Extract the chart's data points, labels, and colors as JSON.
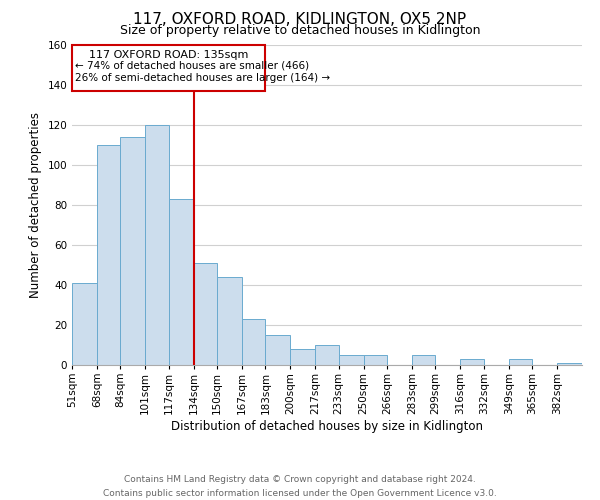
{
  "title": "117, OXFORD ROAD, KIDLINGTON, OX5 2NP",
  "subtitle": "Size of property relative to detached houses in Kidlington",
  "xlabel": "Distribution of detached houses by size in Kidlington",
  "ylabel": "Number of detached properties",
  "footer_line1": "Contains HM Land Registry data © Crown copyright and database right 2024.",
  "footer_line2": "Contains public sector information licensed under the Open Government Licence v3.0.",
  "bin_labels": [
    "51sqm",
    "68sqm",
    "84sqm",
    "101sqm",
    "117sqm",
    "134sqm",
    "150sqm",
    "167sqm",
    "183sqm",
    "200sqm",
    "217sqm",
    "233sqm",
    "250sqm",
    "266sqm",
    "283sqm",
    "299sqm",
    "316sqm",
    "332sqm",
    "349sqm",
    "365sqm",
    "382sqm"
  ],
  "bar_heights": [
    41,
    110,
    114,
    120,
    83,
    51,
    44,
    23,
    15,
    8,
    10,
    5,
    5,
    0,
    5,
    0,
    3,
    0,
    3,
    0,
    1
  ],
  "bar_color": "#ccdded",
  "bar_edge_color": "#6aaacf",
  "bin_edges": [
    51,
    68,
    84,
    101,
    117,
    134,
    150,
    167,
    183,
    200,
    217,
    233,
    250,
    266,
    283,
    299,
    316,
    332,
    349,
    365,
    382,
    399
  ],
  "vline_x": 134,
  "vline_color": "#cc0000",
  "annotation_title": "117 OXFORD ROAD: 135sqm",
  "annotation_line2": "← 74% of detached houses are smaller (466)",
  "annotation_line3": "26% of semi-detached houses are larger (164) →",
  "annotation_box_color": "#cc0000",
  "annotation_box_fill": "#ffffff",
  "ylim": [
    0,
    160
  ],
  "yticks": [
    0,
    20,
    40,
    60,
    80,
    100,
    120,
    140,
    160
  ],
  "grid_color": "#d0d0d0",
  "background_color": "#ffffff",
  "title_fontsize": 11,
  "subtitle_fontsize": 9,
  "axis_label_fontsize": 8.5,
  "tick_fontsize": 7.5,
  "footer_fontsize": 6.5
}
